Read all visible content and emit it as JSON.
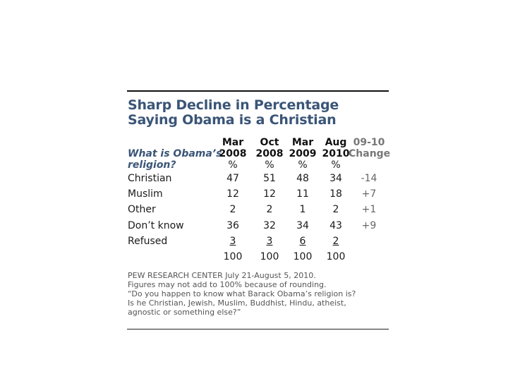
{
  "title_lines": [
    "Sharp Decline in Percentage",
    "Saying Obama is a Christian"
  ],
  "chart_data": {
    "type": "table",
    "title": "Sharp Decline in Percentage Saying Obama is a Christian",
    "question": [
      "What is Obama’s",
      "religion?"
    ],
    "columns": [
      {
        "top": "Mar",
        "bottom": "2008",
        "unit": "%"
      },
      {
        "top": "Oct",
        "bottom": "2008",
        "unit": "%"
      },
      {
        "top": "Mar",
        "bottom": "2009",
        "unit": "%"
      },
      {
        "top": "Aug",
        "bottom": "2010",
        "unit": "%"
      },
      {
        "top": "09-10",
        "bottom": "Change",
        "unit": ""
      }
    ],
    "rows": [
      {
        "label": "Christian",
        "values": [
          "47",
          "51",
          "48",
          "34",
          "-14"
        ]
      },
      {
        "label": "Muslim",
        "values": [
          "12",
          "12",
          "11",
          "18",
          "+7"
        ]
      },
      {
        "label": "Other",
        "values": [
          "2",
          "2",
          "1",
          "2",
          "+1"
        ]
      },
      {
        "label": "Don’t know",
        "values": [
          "36",
          "32",
          "34",
          "43",
          "+9"
        ]
      },
      {
        "label": "Refused",
        "values": [
          "3",
          "3",
          "6",
          "2",
          ""
        ]
      },
      {
        "label": "",
        "values": [
          "100",
          "100",
          "100",
          "100",
          ""
        ]
      }
    ]
  },
  "notes": [
    "PEW RESEARCH  CENTER July 21-August 5, 2010.",
    "Figures may not add to 100% because of rounding.",
    "“Do you happen to know what  Barack Obama’s religion is?",
    "Is he Christian, Jewish, Muslim, Buddhist, Hindu, atheist,",
    "agnostic or something else?”"
  ]
}
